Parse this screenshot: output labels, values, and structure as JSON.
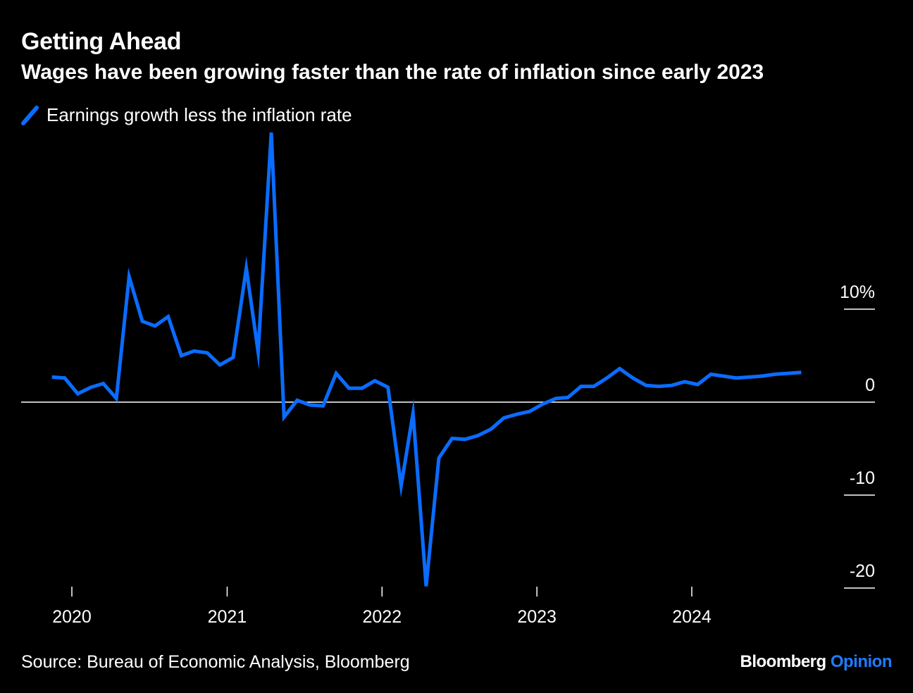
{
  "header": {
    "title": "Getting Ahead",
    "subtitle": "Wages have been growing faster than the rate of inflation since early 2023"
  },
  "footer": {
    "source": "Source: Bureau of Economic Analysis, Bloomberg",
    "brand_main": "Bloomberg",
    "brand_accent": "Opinion"
  },
  "colors": {
    "background": "#000000",
    "series": "#0a6cff",
    "axis": "#ffffff",
    "brand_accent": "#1f7cff"
  },
  "chart_data": {
    "type": "line",
    "title": "Getting Ahead",
    "subtitle": "Wages have been growing faster than the rate of inflation since early 2023",
    "ylabel": "",
    "xlabel": "",
    "y_unit": "%",
    "ylim": [
      -20,
      29
    ],
    "xlim": [
      "2019-10-01",
      "2024-12-31"
    ],
    "y_ticks": [
      {
        "value": 10,
        "label": "10%"
      },
      {
        "value": 0,
        "label": "0"
      },
      {
        "value": -10,
        "label": "-10"
      },
      {
        "value": -20,
        "label": "-20"
      }
    ],
    "x_ticks": [
      {
        "value": "2020-01-01",
        "label": "2020"
      },
      {
        "value": "2021-01-01",
        "label": "2021"
      },
      {
        "value": "2022-01-01",
        "label": "2022"
      },
      {
        "value": "2023-01-01",
        "label": "2023"
      },
      {
        "value": "2024-01-01",
        "label": "2024"
      }
    ],
    "legend": "top-left",
    "grid": false,
    "series": [
      {
        "name": "Earnings growth less the inflation rate",
        "color": "#0a6cff",
        "x": [
          "2019-11",
          "2019-12",
          "2020-01",
          "2020-02",
          "2020-03",
          "2020-04",
          "2020-05",
          "2020-06",
          "2020-07",
          "2020-08",
          "2020-09",
          "2020-10",
          "2020-11",
          "2020-12",
          "2021-01",
          "2021-02",
          "2021-03",
          "2021-04",
          "2021-05",
          "2021-06",
          "2021-07",
          "2021-08",
          "2021-09",
          "2021-10",
          "2021-11",
          "2021-12",
          "2022-01",
          "2022-02",
          "2022-03",
          "2022-04",
          "2022-05",
          "2022-06",
          "2022-07",
          "2022-08",
          "2022-09",
          "2022-10",
          "2022-11",
          "2022-12",
          "2023-01",
          "2023-02",
          "2023-03",
          "2023-04",
          "2023-05",
          "2023-06",
          "2023-07",
          "2023-08",
          "2023-09",
          "2023-10",
          "2023-11",
          "2023-12",
          "2024-01",
          "2024-02",
          "2024-03",
          "2024-04",
          "2024-05",
          "2024-06",
          "2024-07",
          "2024-08",
          "2024-09"
        ],
        "values": [
          2.7,
          2.6,
          0.9,
          1.6,
          2.0,
          0.4,
          13.5,
          8.7,
          8.2,
          9.2,
          5.0,
          5.5,
          5.3,
          4.0,
          4.8,
          14.4,
          5.4,
          29.0,
          -1.6,
          0.2,
          -0.3,
          -0.4,
          3.1,
          1.5,
          1.5,
          2.3,
          1.6,
          -9.0,
          -1.2,
          -19.8,
          -6.0,
          -3.9,
          -4.0,
          -3.6,
          -2.9,
          -1.7,
          -1.3,
          -1.0,
          -0.2,
          0.4,
          0.5,
          1.7,
          1.7,
          2.6,
          3.6,
          2.6,
          1.8,
          1.7,
          1.8,
          2.2,
          1.9,
          3.0,
          2.8,
          2.6,
          2.7,
          2.8,
          3.0,
          3.1,
          3.2
        ]
      }
    ]
  }
}
